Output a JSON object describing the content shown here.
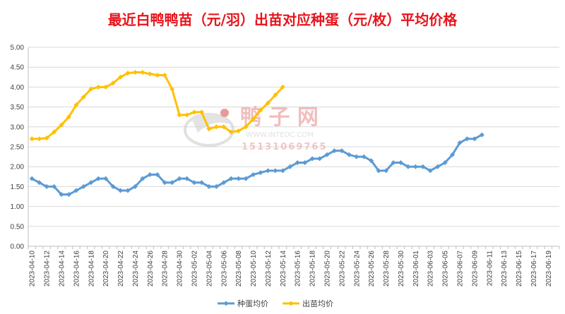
{
  "chart_data": {
    "type": "line",
    "title": "最近白鸭鸭苗（元/羽）出苗对应种蛋（元/枚）平均价格",
    "xlabel": "",
    "ylabel": "",
    "ylim": [
      0,
      5
    ],
    "yticks": [
      "0.00",
      "0.50",
      "1.00",
      "1.50",
      "2.00",
      "2.50",
      "3.00",
      "3.50",
      "4.00",
      "4.50",
      "5.00"
    ],
    "x_start": "2023-04-10",
    "x_end": "2023-06-20",
    "x_tick_labels": [
      "2023-04-10",
      "2023-04-12",
      "2023-04-14",
      "2023-04-16",
      "2023-04-18",
      "2023-04-20",
      "2023-04-22",
      "2023-04-24",
      "2023-04-26",
      "2023-04-28",
      "2023-04-30",
      "2023-05-02",
      "2023-05-04",
      "2023-05-06",
      "2023-05-08",
      "2023-05-10",
      "2023-05-12",
      "2023-05-14",
      "2023-05-16",
      "2023-05-18",
      "2023-05-20",
      "2023-05-22",
      "2023-05-24",
      "2023-05-26",
      "2023-05-28",
      "2023-05-30",
      "2023-06-01",
      "2023-06-03",
      "2023-06-05",
      "2023-06-07",
      "2023-06-09",
      "2023-06-11",
      "2023-06-13",
      "2023-06-15",
      "2023-06-17",
      "2023-06-19"
    ],
    "grid": true,
    "legend_position": "bottom",
    "series": [
      {
        "name": "种蛋均价",
        "color": "#5b9bd5",
        "points": [
          [
            "2023-04-10",
            1.7
          ],
          [
            "2023-04-11",
            1.6
          ],
          [
            "2023-04-12",
            1.5
          ],
          [
            "2023-04-13",
            1.5
          ],
          [
            "2023-04-14",
            1.3
          ],
          [
            "2023-04-15",
            1.3
          ],
          [
            "2023-04-16",
            1.4
          ],
          [
            "2023-04-17",
            1.5
          ],
          [
            "2023-04-18",
            1.6
          ],
          [
            "2023-04-19",
            1.7
          ],
          [
            "2023-04-20",
            1.7
          ],
          [
            "2023-04-21",
            1.5
          ],
          [
            "2023-04-22",
            1.4
          ],
          [
            "2023-04-23",
            1.4
          ],
          [
            "2023-04-24",
            1.5
          ],
          [
            "2023-04-25",
            1.7
          ],
          [
            "2023-04-26",
            1.8
          ],
          [
            "2023-04-27",
            1.8
          ],
          [
            "2023-04-28",
            1.6
          ],
          [
            "2023-04-29",
            1.6
          ],
          [
            "2023-04-30",
            1.7
          ],
          [
            "2023-05-01",
            1.7
          ],
          [
            "2023-05-02",
            1.6
          ],
          [
            "2023-05-03",
            1.6
          ],
          [
            "2023-05-04",
            1.5
          ],
          [
            "2023-05-05",
            1.5
          ],
          [
            "2023-05-06",
            1.6
          ],
          [
            "2023-05-07",
            1.7
          ],
          [
            "2023-05-08",
            1.7
          ],
          [
            "2023-05-09",
            1.7
          ],
          [
            "2023-05-10",
            1.8
          ],
          [
            "2023-05-11",
            1.85
          ],
          [
            "2023-05-12",
            1.9
          ],
          [
            "2023-05-13",
            1.9
          ],
          [
            "2023-05-14",
            1.9
          ],
          [
            "2023-05-15",
            2.0
          ],
          [
            "2023-05-16",
            2.1
          ],
          [
            "2023-05-17",
            2.1
          ],
          [
            "2023-05-18",
            2.2
          ],
          [
            "2023-05-19",
            2.2
          ],
          [
            "2023-05-20",
            2.3
          ],
          [
            "2023-05-21",
            2.4
          ],
          [
            "2023-05-22",
            2.4
          ],
          [
            "2023-05-23",
            2.3
          ],
          [
            "2023-05-24",
            2.25
          ],
          [
            "2023-05-25",
            2.25
          ],
          [
            "2023-05-26",
            2.15
          ],
          [
            "2023-05-27",
            1.9
          ],
          [
            "2023-05-28",
            1.9
          ],
          [
            "2023-05-29",
            2.1
          ],
          [
            "2023-05-30",
            2.1
          ],
          [
            "2023-05-31",
            2.0
          ],
          [
            "2023-06-01",
            2.0
          ],
          [
            "2023-06-02",
            2.0
          ],
          [
            "2023-06-03",
            1.9
          ],
          [
            "2023-06-04",
            2.0
          ],
          [
            "2023-06-05",
            2.1
          ],
          [
            "2023-06-06",
            2.3
          ],
          [
            "2023-06-07",
            2.6
          ],
          [
            "2023-06-08",
            2.7
          ],
          [
            "2023-06-09",
            2.7
          ],
          [
            "2023-06-10",
            2.8
          ]
        ]
      },
      {
        "name": "出苗均价",
        "color": "#ffc000",
        "points": [
          [
            "2023-04-10",
            2.7
          ],
          [
            "2023-04-11",
            2.7
          ],
          [
            "2023-04-12",
            2.72
          ],
          [
            "2023-04-13",
            2.87
          ],
          [
            "2023-04-14",
            3.05
          ],
          [
            "2023-04-15",
            3.25
          ],
          [
            "2023-04-16",
            3.55
          ],
          [
            "2023-04-17",
            3.75
          ],
          [
            "2023-04-18",
            3.95
          ],
          [
            "2023-04-19",
            4.0
          ],
          [
            "2023-04-20",
            4.0
          ],
          [
            "2023-04-21",
            4.1
          ],
          [
            "2023-04-22",
            4.25
          ],
          [
            "2023-04-23",
            4.35
          ],
          [
            "2023-04-24",
            4.37
          ],
          [
            "2023-04-25",
            4.37
          ],
          [
            "2023-04-26",
            4.33
          ],
          [
            "2023-04-27",
            4.3
          ],
          [
            "2023-04-28",
            4.3
          ],
          [
            "2023-04-29",
            3.95
          ],
          [
            "2023-04-30",
            3.3
          ],
          [
            "2023-05-01",
            3.3
          ],
          [
            "2023-05-02",
            3.37
          ],
          [
            "2023-05-03",
            3.37
          ],
          [
            "2023-05-04",
            2.95
          ],
          [
            "2023-05-05",
            3.0
          ],
          [
            "2023-05-06",
            3.0
          ],
          [
            "2023-05-07",
            2.87
          ],
          [
            "2023-05-08",
            2.9
          ],
          [
            "2023-05-09",
            3.0
          ],
          [
            "2023-05-10",
            3.2
          ],
          [
            "2023-05-11",
            3.42
          ],
          [
            "2023-05-12",
            3.6
          ],
          [
            "2023-05-13",
            3.8
          ],
          [
            "2023-05-14",
            4.0
          ]
        ]
      }
    ]
  },
  "watermark": {
    "brand": "鸭 子 网",
    "site": "WWW.INTEDC.COM",
    "phone": "15131069765"
  }
}
